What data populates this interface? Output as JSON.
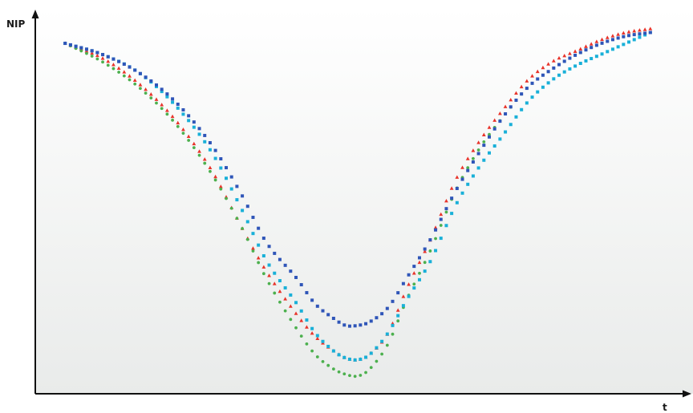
{
  "chart_data": {
    "type": "scatter",
    "title": "",
    "xlabel": "t",
    "ylabel": "NIP",
    "xlim": [
      0,
      1
    ],
    "ylim": [
      0,
      1
    ],
    "grid": false,
    "legend": "none",
    "colors": {
      "red": "#e8332a",
      "green": "#4cb04e",
      "cyan": "#19b0d8",
      "blue": "#2f55b8",
      "axis": "#111111",
      "bg_top": "#ffffff",
      "bg_bottom": "#e9ebea"
    },
    "series": [
      {
        "color_key": "red",
        "marker": "triangle",
        "x": [
          0.02,
          0.08,
          0.14,
          0.2,
          0.26,
          0.31,
          0.35,
          0.4,
          0.43,
          0.46,
          0.48,
          0.5,
          0.52,
          0.55,
          0.58,
          0.62,
          0.66,
          0.7,
          0.74,
          0.78,
          0.82,
          0.86,
          0.9,
          0.94,
          0.98
        ],
        "y": [
          0.96,
          0.92,
          0.85,
          0.75,
          0.61,
          0.45,
          0.33,
          0.21,
          0.15,
          0.11,
          0.09,
          0.085,
          0.1,
          0.16,
          0.28,
          0.42,
          0.58,
          0.69,
          0.78,
          0.86,
          0.91,
          0.94,
          0.97,
          0.99,
          1.0
        ]
      },
      {
        "color_key": "green",
        "marker": "dot",
        "x": [
          0.02,
          0.08,
          0.14,
          0.2,
          0.26,
          0.31,
          0.35,
          0.4,
          0.43,
          0.46,
          0.48,
          0.5,
          0.52,
          0.55,
          0.58,
          0.62,
          0.66,
          0.7,
          0.74,
          0.78,
          0.82,
          0.86,
          0.9,
          0.94,
          0.98
        ],
        "y": [
          0.96,
          0.91,
          0.84,
          0.74,
          0.6,
          0.45,
          0.31,
          0.17,
          0.1,
          0.06,
          0.045,
          0.04,
          0.06,
          0.13,
          0.25,
          0.39,
          0.55,
          0.67,
          0.76,
          0.84,
          0.89,
          0.93,
          0.96,
          0.98,
          0.99
        ]
      },
      {
        "color_key": "cyan",
        "marker": "square",
        "x": [
          0.02,
          0.08,
          0.14,
          0.2,
          0.26,
          0.31,
          0.35,
          0.4,
          0.43,
          0.46,
          0.48,
          0.5,
          0.52,
          0.55,
          0.58,
          0.62,
          0.66,
          0.7,
          0.74,
          0.78,
          0.82,
          0.86,
          0.9,
          0.94,
          0.98
        ],
        "y": [
          0.96,
          0.93,
          0.88,
          0.79,
          0.66,
          0.5,
          0.36,
          0.24,
          0.16,
          0.11,
          0.09,
          0.085,
          0.1,
          0.16,
          0.25,
          0.36,
          0.51,
          0.62,
          0.71,
          0.8,
          0.86,
          0.9,
          0.93,
          0.96,
          0.99
        ]
      },
      {
        "color_key": "blue",
        "marker": "square",
        "x": [
          0.02,
          0.08,
          0.14,
          0.2,
          0.26,
          0.31,
          0.35,
          0.4,
          0.43,
          0.46,
          0.48,
          0.5,
          0.52,
          0.55,
          0.58,
          0.62,
          0.66,
          0.7,
          0.74,
          0.78,
          0.82,
          0.86,
          0.9,
          0.94,
          0.98
        ],
        "y": [
          0.96,
          0.93,
          0.88,
          0.8,
          0.68,
          0.54,
          0.41,
          0.31,
          0.24,
          0.2,
          0.18,
          0.18,
          0.19,
          0.23,
          0.31,
          0.42,
          0.55,
          0.66,
          0.76,
          0.84,
          0.89,
          0.93,
          0.96,
          0.98,
          0.99
        ]
      }
    ]
  }
}
